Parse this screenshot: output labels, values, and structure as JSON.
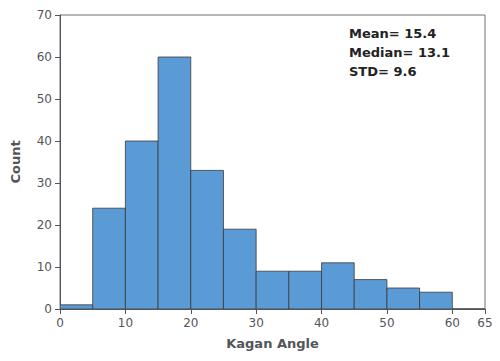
{
  "chart_data": {
    "type": "histogram",
    "bins": [
      0,
      5,
      10,
      15,
      20,
      25,
      30,
      35,
      40,
      45,
      50,
      55,
      60,
      65
    ],
    "values": [
      1,
      24,
      40,
      60,
      33,
      19,
      9,
      9,
      11,
      7,
      5,
      4,
      0
    ],
    "color": "#5b9bd5",
    "x_label": "Kagan Angle",
    "y_label": "Count",
    "xlim": [
      0,
      65
    ],
    "ylim": [
      0,
      70
    ],
    "xticks": [
      0,
      10,
      20,
      30,
      40,
      50,
      60
    ],
    "yticks": [
      0,
      10,
      20,
      30,
      40,
      50,
      60,
      70
    ],
    "annotation": "Mean= 15.4\nMedian= 13.1\nSTD= 9.6",
    "grid": false
  }
}
